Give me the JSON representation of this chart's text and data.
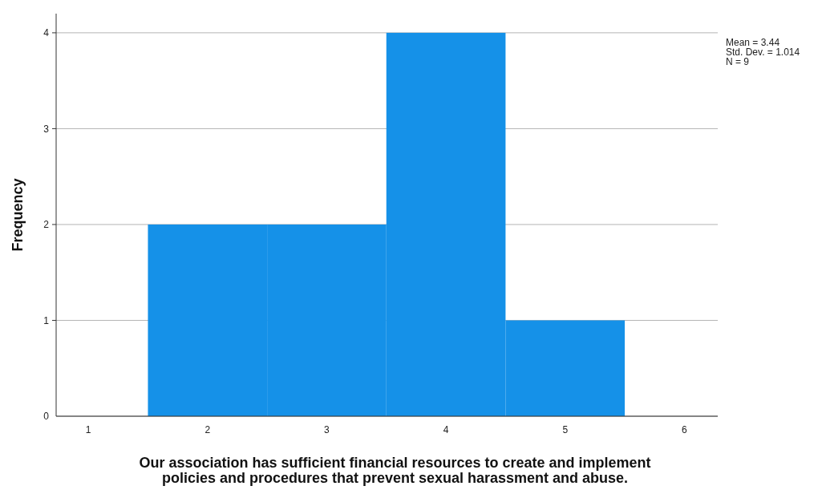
{
  "chart_data": {
    "type": "histogram",
    "xlabel": "Our association has sufficient financial resources to create and implement\npolicies and procedures that prevent sexual harassment and abuse.",
    "ylabel": "Frequency",
    "bins": [
      1.5,
      2.5,
      3.5,
      4.5,
      5.5
    ],
    "values": [
      2,
      2,
      4,
      1
    ],
    "color": "#1591e8",
    "xlim": [
      0.73,
      6.28
    ],
    "xticks": [
      1,
      2,
      3,
      4,
      5,
      6
    ],
    "ylim": [
      0,
      4.2
    ],
    "yticks": [
      0,
      1,
      2,
      3,
      4
    ],
    "grid": "y",
    "annotations": [
      "Mean = 3.44",
      "Std. Dev. = 1.014",
      "N = 9"
    ]
  }
}
